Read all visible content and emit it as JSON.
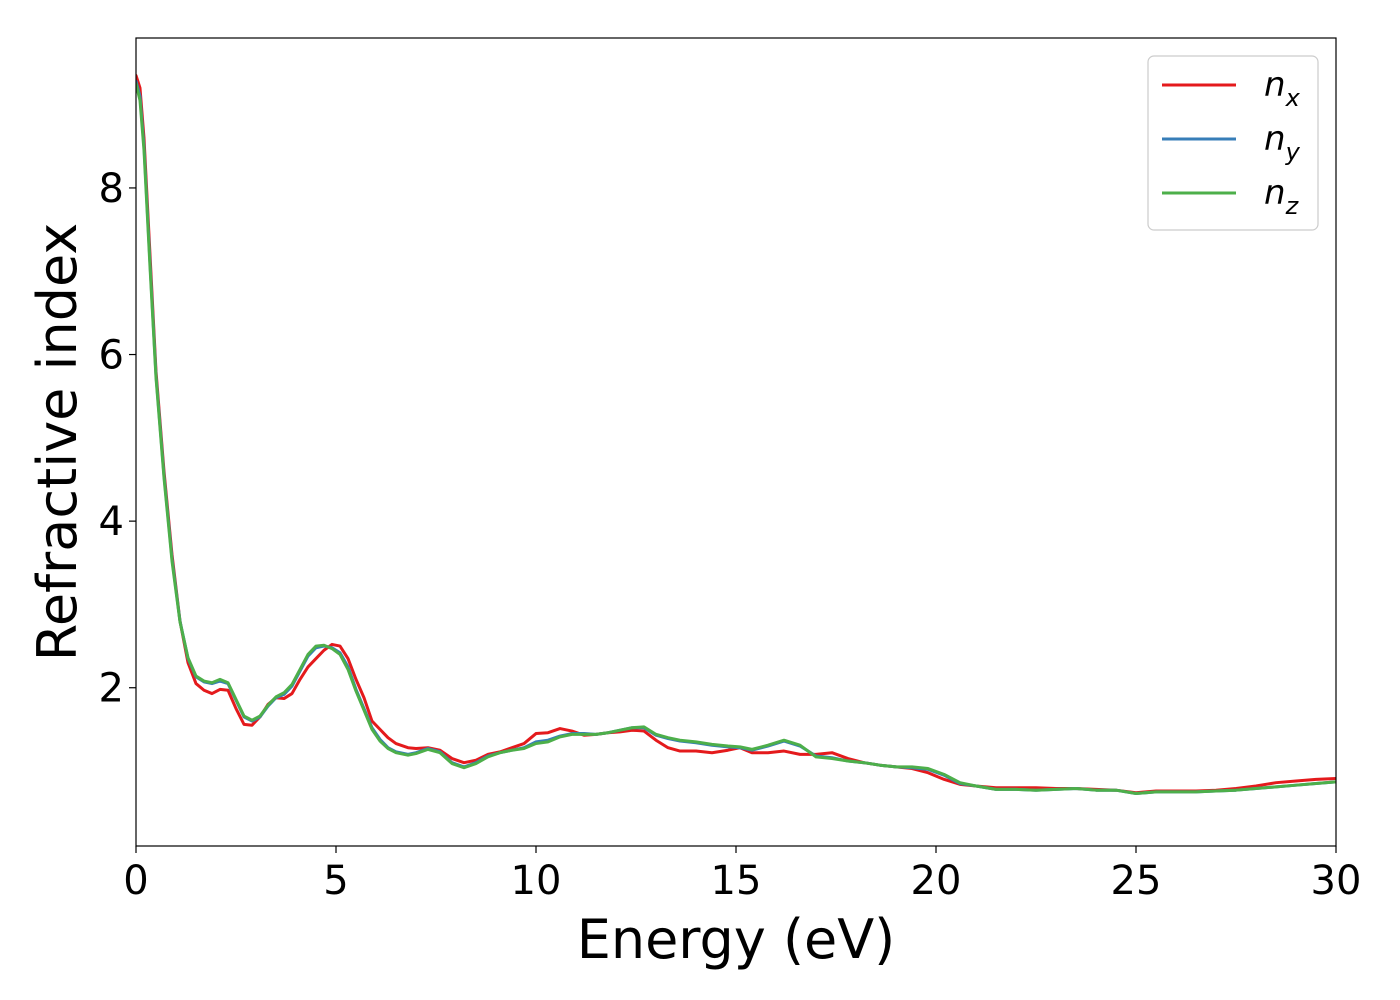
{
  "chart_data": {
    "type": "line",
    "xlabel": "Energy (eV)",
    "ylabel": "Refractive index",
    "xlim": [
      0,
      30
    ],
    "ylim": [
      0.1,
      9.8
    ],
    "xticks": [
      0,
      5,
      10,
      15,
      20,
      25,
      30
    ],
    "yticks": [
      2,
      4,
      6,
      8
    ],
    "grid": false,
    "legend_position": "top-right",
    "series": [
      {
        "name": "n_x",
        "label_base": "n",
        "label_sub": "x",
        "color": "#e41a1c",
        "points": [
          [
            0,
            9.35
          ],
          [
            0.1,
            9.2
          ],
          [
            0.2,
            8.6
          ],
          [
            0.35,
            7.2
          ],
          [
            0.5,
            5.8
          ],
          [
            0.7,
            4.6
          ],
          [
            0.9,
            3.6
          ],
          [
            1.1,
            2.8
          ],
          [
            1.3,
            2.3
          ],
          [
            1.5,
            2.05
          ],
          [
            1.7,
            1.97
          ],
          [
            1.9,
            1.93
          ],
          [
            2.1,
            1.98
          ],
          [
            2.3,
            1.97
          ],
          [
            2.5,
            1.75
          ],
          [
            2.7,
            1.56
          ],
          [
            2.9,
            1.55
          ],
          [
            3.1,
            1.65
          ],
          [
            3.3,
            1.8
          ],
          [
            3.5,
            1.88
          ],
          [
            3.7,
            1.87
          ],
          [
            3.9,
            1.93
          ],
          [
            4.1,
            2.1
          ],
          [
            4.3,
            2.25
          ],
          [
            4.5,
            2.35
          ],
          [
            4.7,
            2.45
          ],
          [
            4.9,
            2.52
          ],
          [
            5.1,
            2.5
          ],
          [
            5.3,
            2.35
          ],
          [
            5.5,
            2.1
          ],
          [
            5.7,
            1.88
          ],
          [
            5.9,
            1.6
          ],
          [
            6.1,
            1.5
          ],
          [
            6.3,
            1.4
          ],
          [
            6.5,
            1.33
          ],
          [
            6.8,
            1.28
          ],
          [
            7.0,
            1.27
          ],
          [
            7.3,
            1.28
          ],
          [
            7.6,
            1.25
          ],
          [
            7.9,
            1.15
          ],
          [
            8.2,
            1.1
          ],
          [
            8.5,
            1.13
          ],
          [
            8.8,
            1.2
          ],
          [
            9.1,
            1.23
          ],
          [
            9.4,
            1.28
          ],
          [
            9.7,
            1.33
          ],
          [
            10.0,
            1.45
          ],
          [
            10.3,
            1.46
          ],
          [
            10.6,
            1.51
          ],
          [
            10.9,
            1.48
          ],
          [
            11.2,
            1.43
          ],
          [
            11.5,
            1.44
          ],
          [
            11.8,
            1.46
          ],
          [
            12.1,
            1.47
          ],
          [
            12.4,
            1.49
          ],
          [
            12.7,
            1.48
          ],
          [
            13.0,
            1.37
          ],
          [
            13.3,
            1.28
          ],
          [
            13.6,
            1.24
          ],
          [
            14.0,
            1.24
          ],
          [
            14.4,
            1.22
          ],
          [
            14.8,
            1.25
          ],
          [
            15.1,
            1.28
          ],
          [
            15.4,
            1.22
          ],
          [
            15.8,
            1.22
          ],
          [
            16.2,
            1.24
          ],
          [
            16.6,
            1.2
          ],
          [
            17.0,
            1.2
          ],
          [
            17.4,
            1.22
          ],
          [
            17.8,
            1.15
          ],
          [
            18.2,
            1.1
          ],
          [
            18.6,
            1.07
          ],
          [
            19.0,
            1.05
          ],
          [
            19.4,
            1.03
          ],
          [
            19.8,
            0.98
          ],
          [
            20.2,
            0.9
          ],
          [
            20.6,
            0.84
          ],
          [
            21.0,
            0.82
          ],
          [
            21.5,
            0.8
          ],
          [
            22.0,
            0.8
          ],
          [
            22.5,
            0.8
          ],
          [
            23.0,
            0.79
          ],
          [
            23.5,
            0.79
          ],
          [
            24.0,
            0.78
          ],
          [
            24.5,
            0.77
          ],
          [
            25.0,
            0.74
          ],
          [
            25.5,
            0.76
          ],
          [
            26.0,
            0.76
          ],
          [
            26.5,
            0.76
          ],
          [
            27.0,
            0.77
          ],
          [
            27.5,
            0.79
          ],
          [
            28.0,
            0.82
          ],
          [
            28.5,
            0.86
          ],
          [
            29.0,
            0.88
          ],
          [
            29.5,
            0.9
          ],
          [
            30.0,
            0.91
          ]
        ]
      },
      {
        "name": "n_y",
        "label_base": "n",
        "label_sub": "y",
        "color": "#377eb8",
        "points": [
          [
            0,
            9.28
          ],
          [
            0.1,
            9.1
          ],
          [
            0.2,
            8.5
          ],
          [
            0.35,
            7.1
          ],
          [
            0.5,
            5.75
          ],
          [
            0.7,
            4.55
          ],
          [
            0.9,
            3.55
          ],
          [
            1.1,
            2.8
          ],
          [
            1.3,
            2.35
          ],
          [
            1.5,
            2.13
          ],
          [
            1.7,
            2.07
          ],
          [
            1.9,
            2.05
          ],
          [
            2.1,
            2.08
          ],
          [
            2.3,
            2.05
          ],
          [
            2.5,
            1.85
          ],
          [
            2.7,
            1.65
          ],
          [
            2.9,
            1.6
          ],
          [
            3.1,
            1.65
          ],
          [
            3.3,
            1.78
          ],
          [
            3.5,
            1.88
          ],
          [
            3.7,
            1.92
          ],
          [
            3.9,
            2.02
          ],
          [
            4.1,
            2.2
          ],
          [
            4.3,
            2.38
          ],
          [
            4.5,
            2.48
          ],
          [
            4.7,
            2.5
          ],
          [
            4.9,
            2.48
          ],
          [
            5.1,
            2.42
          ],
          [
            5.3,
            2.25
          ],
          [
            5.5,
            1.98
          ],
          [
            5.7,
            1.75
          ],
          [
            5.9,
            1.52
          ],
          [
            6.1,
            1.38
          ],
          [
            6.3,
            1.28
          ],
          [
            6.5,
            1.23
          ],
          [
            6.8,
            1.2
          ],
          [
            7.0,
            1.22
          ],
          [
            7.3,
            1.27
          ],
          [
            7.6,
            1.23
          ],
          [
            7.9,
            1.1
          ],
          [
            8.2,
            1.05
          ],
          [
            8.5,
            1.1
          ],
          [
            8.8,
            1.18
          ],
          [
            9.1,
            1.22
          ],
          [
            9.4,
            1.25
          ],
          [
            9.7,
            1.28
          ],
          [
            10.0,
            1.35
          ],
          [
            10.3,
            1.37
          ],
          [
            10.6,
            1.42
          ],
          [
            10.9,
            1.45
          ],
          [
            11.2,
            1.45
          ],
          [
            11.5,
            1.44
          ],
          [
            11.8,
            1.46
          ],
          [
            12.1,
            1.49
          ],
          [
            12.4,
            1.52
          ],
          [
            12.7,
            1.52
          ],
          [
            13.0,
            1.43
          ],
          [
            13.3,
            1.39
          ],
          [
            13.6,
            1.36
          ],
          [
            14.0,
            1.34
          ],
          [
            14.4,
            1.31
          ],
          [
            14.8,
            1.29
          ],
          [
            15.1,
            1.28
          ],
          [
            15.4,
            1.25
          ],
          [
            15.8,
            1.3
          ],
          [
            16.2,
            1.36
          ],
          [
            16.6,
            1.3
          ],
          [
            17.0,
            1.18
          ],
          [
            17.4,
            1.16
          ],
          [
            17.8,
            1.12
          ],
          [
            18.2,
            1.1
          ],
          [
            18.6,
            1.07
          ],
          [
            19.0,
            1.05
          ],
          [
            19.4,
            1.04
          ],
          [
            19.8,
            1.02
          ],
          [
            20.2,
            0.95
          ],
          [
            20.6,
            0.85
          ],
          [
            21.0,
            0.82
          ],
          [
            21.5,
            0.78
          ],
          [
            22.0,
            0.78
          ],
          [
            22.5,
            0.77
          ],
          [
            23.0,
            0.78
          ],
          [
            23.5,
            0.79
          ],
          [
            24.0,
            0.77
          ],
          [
            24.5,
            0.77
          ],
          [
            25.0,
            0.73
          ],
          [
            25.5,
            0.75
          ],
          [
            26.0,
            0.75
          ],
          [
            26.5,
            0.75
          ],
          [
            27.0,
            0.76
          ],
          [
            27.5,
            0.77
          ],
          [
            28.0,
            0.79
          ],
          [
            28.5,
            0.81
          ],
          [
            29.0,
            0.83
          ],
          [
            29.5,
            0.85
          ],
          [
            30.0,
            0.87
          ]
        ]
      },
      {
        "name": "n_z",
        "label_base": "n",
        "label_sub": "z",
        "color": "#4daf4a",
        "points": [
          [
            0,
            9.25
          ],
          [
            0.1,
            9.05
          ],
          [
            0.2,
            8.45
          ],
          [
            0.35,
            7.05
          ],
          [
            0.5,
            5.72
          ],
          [
            0.7,
            4.52
          ],
          [
            0.9,
            3.52
          ],
          [
            1.1,
            2.79
          ],
          [
            1.3,
            2.36
          ],
          [
            1.5,
            2.14
          ],
          [
            1.7,
            2.08
          ],
          [
            1.9,
            2.06
          ],
          [
            2.1,
            2.1
          ],
          [
            2.3,
            2.06
          ],
          [
            2.5,
            1.86
          ],
          [
            2.7,
            1.66
          ],
          [
            2.9,
            1.61
          ],
          [
            3.1,
            1.66
          ],
          [
            3.3,
            1.79
          ],
          [
            3.5,
            1.89
          ],
          [
            3.7,
            1.94
          ],
          [
            3.9,
            2.04
          ],
          [
            4.1,
            2.22
          ],
          [
            4.3,
            2.4
          ],
          [
            4.5,
            2.5
          ],
          [
            4.7,
            2.51
          ],
          [
            4.9,
            2.47
          ],
          [
            5.1,
            2.4
          ],
          [
            5.3,
            2.22
          ],
          [
            5.5,
            1.96
          ],
          [
            5.7,
            1.73
          ],
          [
            5.9,
            1.5
          ],
          [
            6.1,
            1.36
          ],
          [
            6.3,
            1.27
          ],
          [
            6.5,
            1.22
          ],
          [
            6.8,
            1.19
          ],
          [
            7.0,
            1.21
          ],
          [
            7.3,
            1.26
          ],
          [
            7.6,
            1.22
          ],
          [
            7.9,
            1.09
          ],
          [
            8.2,
            1.04
          ],
          [
            8.5,
            1.09
          ],
          [
            8.8,
            1.17
          ],
          [
            9.1,
            1.22
          ],
          [
            9.4,
            1.25
          ],
          [
            9.7,
            1.27
          ],
          [
            10.0,
            1.33
          ],
          [
            10.3,
            1.35
          ],
          [
            10.6,
            1.41
          ],
          [
            10.9,
            1.44
          ],
          [
            11.2,
            1.44
          ],
          [
            11.5,
            1.44
          ],
          [
            11.8,
            1.46
          ],
          [
            12.1,
            1.49
          ],
          [
            12.4,
            1.52
          ],
          [
            12.7,
            1.53
          ],
          [
            13.0,
            1.44
          ],
          [
            13.3,
            1.4
          ],
          [
            13.6,
            1.37
          ],
          [
            14.0,
            1.35
          ],
          [
            14.4,
            1.32
          ],
          [
            14.8,
            1.3
          ],
          [
            15.1,
            1.29
          ],
          [
            15.4,
            1.26
          ],
          [
            15.8,
            1.31
          ],
          [
            16.2,
            1.37
          ],
          [
            16.6,
            1.31
          ],
          [
            17.0,
            1.17
          ],
          [
            17.4,
            1.15
          ],
          [
            17.8,
            1.12
          ],
          [
            18.2,
            1.1
          ],
          [
            18.6,
            1.07
          ],
          [
            19.0,
            1.05
          ],
          [
            19.4,
            1.05
          ],
          [
            19.8,
            1.03
          ],
          [
            20.2,
            0.96
          ],
          [
            20.6,
            0.86
          ],
          [
            21.0,
            0.82
          ],
          [
            21.5,
            0.78
          ],
          [
            22.0,
            0.78
          ],
          [
            22.5,
            0.77
          ],
          [
            23.0,
            0.78
          ],
          [
            23.5,
            0.79
          ],
          [
            24.0,
            0.77
          ],
          [
            24.5,
            0.77
          ],
          [
            25.0,
            0.73
          ],
          [
            25.5,
            0.75
          ],
          [
            26.0,
            0.75
          ],
          [
            26.5,
            0.75
          ],
          [
            27.0,
            0.76
          ],
          [
            27.5,
            0.77
          ],
          [
            28.0,
            0.79
          ],
          [
            28.5,
            0.81
          ],
          [
            29.0,
            0.83
          ],
          [
            29.5,
            0.85
          ],
          [
            30.0,
            0.87
          ]
        ]
      }
    ]
  }
}
